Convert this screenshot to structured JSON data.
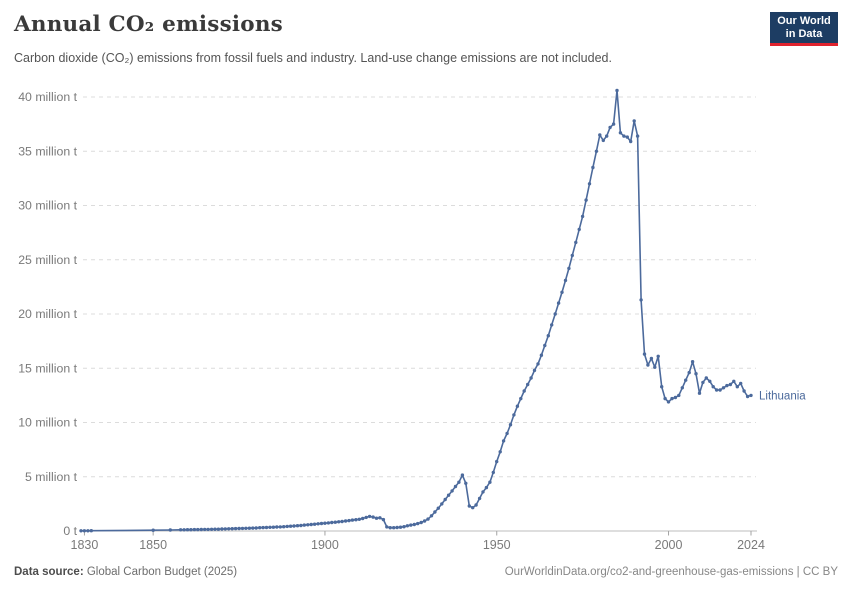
{
  "header": {
    "title": "Annual CO₂ emissions",
    "subtitle": "Carbon dioxide (CO₂) emissions from fossil fuels and industry. Land-use change emissions are not included.",
    "logo": {
      "line1": "Our World",
      "line2": "in Data",
      "bg_color": "#1d3d63",
      "accent_color": "#e0232e"
    }
  },
  "footer": {
    "source_label": "Data source:",
    "source_value": " Global Carbon Budget (2025)",
    "link": "OurWorldinData.org/co2-and-greenhouse-gas-emissions",
    "separator": " | ",
    "license": "CC BY"
  },
  "chart_data": {
    "type": "line",
    "title": "Annual CO₂ emissions",
    "xlabel": "",
    "ylabel": "",
    "unit": "million t",
    "xlim": [
      1829,
      2024
    ],
    "ylim": [
      0,
      40
    ],
    "grid": "horizontal-dashed",
    "legend_position": "end-of-line",
    "x_ticks": [
      1830,
      1850,
      1900,
      1950,
      2000,
      2024
    ],
    "y_ticks": [
      {
        "value": 0,
        "label": "0 t"
      },
      {
        "value": 5,
        "label": "5 million t"
      },
      {
        "value": 10,
        "label": "10 million t"
      },
      {
        "value": 15,
        "label": "15 million t"
      },
      {
        "value": 20,
        "label": "20 million t"
      },
      {
        "value": 25,
        "label": "25 million t"
      },
      {
        "value": 30,
        "label": "30 million t"
      },
      {
        "value": 35,
        "label": "35 million t"
      },
      {
        "value": 40,
        "label": "40 million t"
      }
    ],
    "series": [
      {
        "name": "Lithuania",
        "color": "#4c6a9c",
        "points": [
          [
            1829,
            0.02
          ],
          [
            1830,
            0.02
          ],
          [
            1831,
            0.02
          ],
          [
            1832,
            0.03
          ],
          [
            1850,
            0.07
          ],
          [
            1855,
            0.09
          ],
          [
            1858,
            0.11
          ],
          [
            1859,
            0.11
          ],
          [
            1860,
            0.12
          ],
          [
            1861,
            0.12
          ],
          [
            1862,
            0.13
          ],
          [
            1863,
            0.13
          ],
          [
            1864,
            0.14
          ],
          [
            1865,
            0.15
          ],
          [
            1866,
            0.15
          ],
          [
            1867,
            0.16
          ],
          [
            1868,
            0.17
          ],
          [
            1869,
            0.17
          ],
          [
            1870,
            0.18
          ],
          [
            1871,
            0.19
          ],
          [
            1872,
            0.2
          ],
          [
            1873,
            0.21
          ],
          [
            1874,
            0.22
          ],
          [
            1875,
            0.23
          ],
          [
            1876,
            0.24
          ],
          [
            1877,
            0.25
          ],
          [
            1878,
            0.26
          ],
          [
            1879,
            0.27
          ],
          [
            1880,
            0.28
          ],
          [
            1881,
            0.3
          ],
          [
            1882,
            0.31
          ],
          [
            1883,
            0.32
          ],
          [
            1884,
            0.34
          ],
          [
            1885,
            0.35
          ],
          [
            1886,
            0.37
          ],
          [
            1887,
            0.38
          ],
          [
            1888,
            0.4
          ],
          [
            1889,
            0.42
          ],
          [
            1890,
            0.44
          ],
          [
            1891,
            0.46
          ],
          [
            1892,
            0.49
          ],
          [
            1893,
            0.51
          ],
          [
            1894,
            0.54
          ],
          [
            1895,
            0.57
          ],
          [
            1896,
            0.6
          ],
          [
            1897,
            0.63
          ],
          [
            1898,
            0.66
          ],
          [
            1899,
            0.69
          ],
          [
            1900,
            0.72
          ],
          [
            1901,
            0.75
          ],
          [
            1902,
            0.78
          ],
          [
            1903,
            0.81
          ],
          [
            1904,
            0.85
          ],
          [
            1905,
            0.88
          ],
          [
            1906,
            0.92
          ],
          [
            1907,
            0.96
          ],
          [
            1908,
            1.0
          ],
          [
            1909,
            1.04
          ],
          [
            1910,
            1.08
          ],
          [
            1911,
            1.15
          ],
          [
            1912,
            1.25
          ],
          [
            1913,
            1.35
          ],
          [
            1914,
            1.28
          ],
          [
            1915,
            1.18
          ],
          [
            1916,
            1.22
          ],
          [
            1917,
            1.05
          ],
          [
            1918,
            0.38
          ],
          [
            1919,
            0.3
          ],
          [
            1920,
            0.3
          ],
          [
            1921,
            0.32
          ],
          [
            1922,
            0.35
          ],
          [
            1923,
            0.4
          ],
          [
            1924,
            0.48
          ],
          [
            1925,
            0.54
          ],
          [
            1926,
            0.6
          ],
          [
            1927,
            0.68
          ],
          [
            1928,
            0.78
          ],
          [
            1929,
            0.92
          ],
          [
            1930,
            1.1
          ],
          [
            1931,
            1.4
          ],
          [
            1932,
            1.75
          ],
          [
            1933,
            2.1
          ],
          [
            1934,
            2.5
          ],
          [
            1935,
            2.9
          ],
          [
            1936,
            3.3
          ],
          [
            1937,
            3.7
          ],
          [
            1938,
            4.1
          ],
          [
            1939,
            4.5
          ],
          [
            1940,
            5.15
          ],
          [
            1941,
            4.4
          ],
          [
            1942,
            2.3
          ],
          [
            1943,
            2.15
          ],
          [
            1944,
            2.4
          ],
          [
            1945,
            3.0
          ],
          [
            1946,
            3.6
          ],
          [
            1947,
            4.0
          ],
          [
            1948,
            4.5
          ],
          [
            1949,
            5.4
          ],
          [
            1950,
            6.4
          ],
          [
            1951,
            7.3
          ],
          [
            1952,
            8.3
          ],
          [
            1953,
            9.0
          ],
          [
            1954,
            9.8
          ],
          [
            1955,
            10.7
          ],
          [
            1956,
            11.5
          ],
          [
            1957,
            12.2
          ],
          [
            1958,
            12.9
          ],
          [
            1959,
            13.5
          ],
          [
            1960,
            14.1
          ],
          [
            1961,
            14.8
          ],
          [
            1962,
            15.4
          ],
          [
            1963,
            16.2
          ],
          [
            1964,
            17.1
          ],
          [
            1965,
            18.0
          ],
          [
            1966,
            19.0
          ],
          [
            1967,
            20.0
          ],
          [
            1968,
            21.0
          ],
          [
            1969,
            22.0
          ],
          [
            1970,
            23.1
          ],
          [
            1971,
            24.2
          ],
          [
            1972,
            25.4
          ],
          [
            1973,
            26.6
          ],
          [
            1974,
            27.8
          ],
          [
            1975,
            29.0
          ],
          [
            1976,
            30.5
          ],
          [
            1977,
            32.0
          ],
          [
            1978,
            33.5
          ],
          [
            1979,
            35.0
          ],
          [
            1980,
            36.5
          ],
          [
            1981,
            36.0
          ],
          [
            1982,
            36.4
          ],
          [
            1983,
            37.2
          ],
          [
            1984,
            37.5
          ],
          [
            1985,
            40.6
          ],
          [
            1986,
            36.7
          ],
          [
            1987,
            36.4
          ],
          [
            1988,
            36.3
          ],
          [
            1989,
            35.9
          ],
          [
            1990,
            37.8
          ],
          [
            1991,
            36.4
          ],
          [
            1992,
            21.3
          ],
          [
            1993,
            16.3
          ],
          [
            1994,
            15.3
          ],
          [
            1995,
            15.9
          ],
          [
            1996,
            15.1
          ],
          [
            1997,
            16.1
          ],
          [
            1998,
            13.3
          ],
          [
            1999,
            12.2
          ],
          [
            2000,
            11.9
          ],
          [
            2001,
            12.2
          ],
          [
            2002,
            12.3
          ],
          [
            2003,
            12.5
          ],
          [
            2004,
            13.2
          ],
          [
            2005,
            13.9
          ],
          [
            2006,
            14.6
          ],
          [
            2007,
            15.6
          ],
          [
            2008,
            14.5
          ],
          [
            2009,
            12.7
          ],
          [
            2010,
            13.7
          ],
          [
            2011,
            14.1
          ],
          [
            2012,
            13.8
          ],
          [
            2013,
            13.3
          ],
          [
            2014,
            13.0
          ],
          [
            2015,
            13.0
          ],
          [
            2016,
            13.2
          ],
          [
            2017,
            13.4
          ],
          [
            2018,
            13.5
          ],
          [
            2019,
            13.8
          ],
          [
            2020,
            13.3
          ],
          [
            2021,
            13.6
          ],
          [
            2022,
            12.9
          ],
          [
            2023,
            12.4
          ],
          [
            2024,
            12.5
          ]
        ]
      }
    ]
  },
  "colors": {
    "line": "#4c6a9c",
    "gridline": "#dcdcdc",
    "axis_line": "#bdbdbd",
    "tick": "#a3a3a3",
    "tick_label": "#7a7a7a",
    "title": "#3a3a3a",
    "subtitle": "#545454"
  }
}
